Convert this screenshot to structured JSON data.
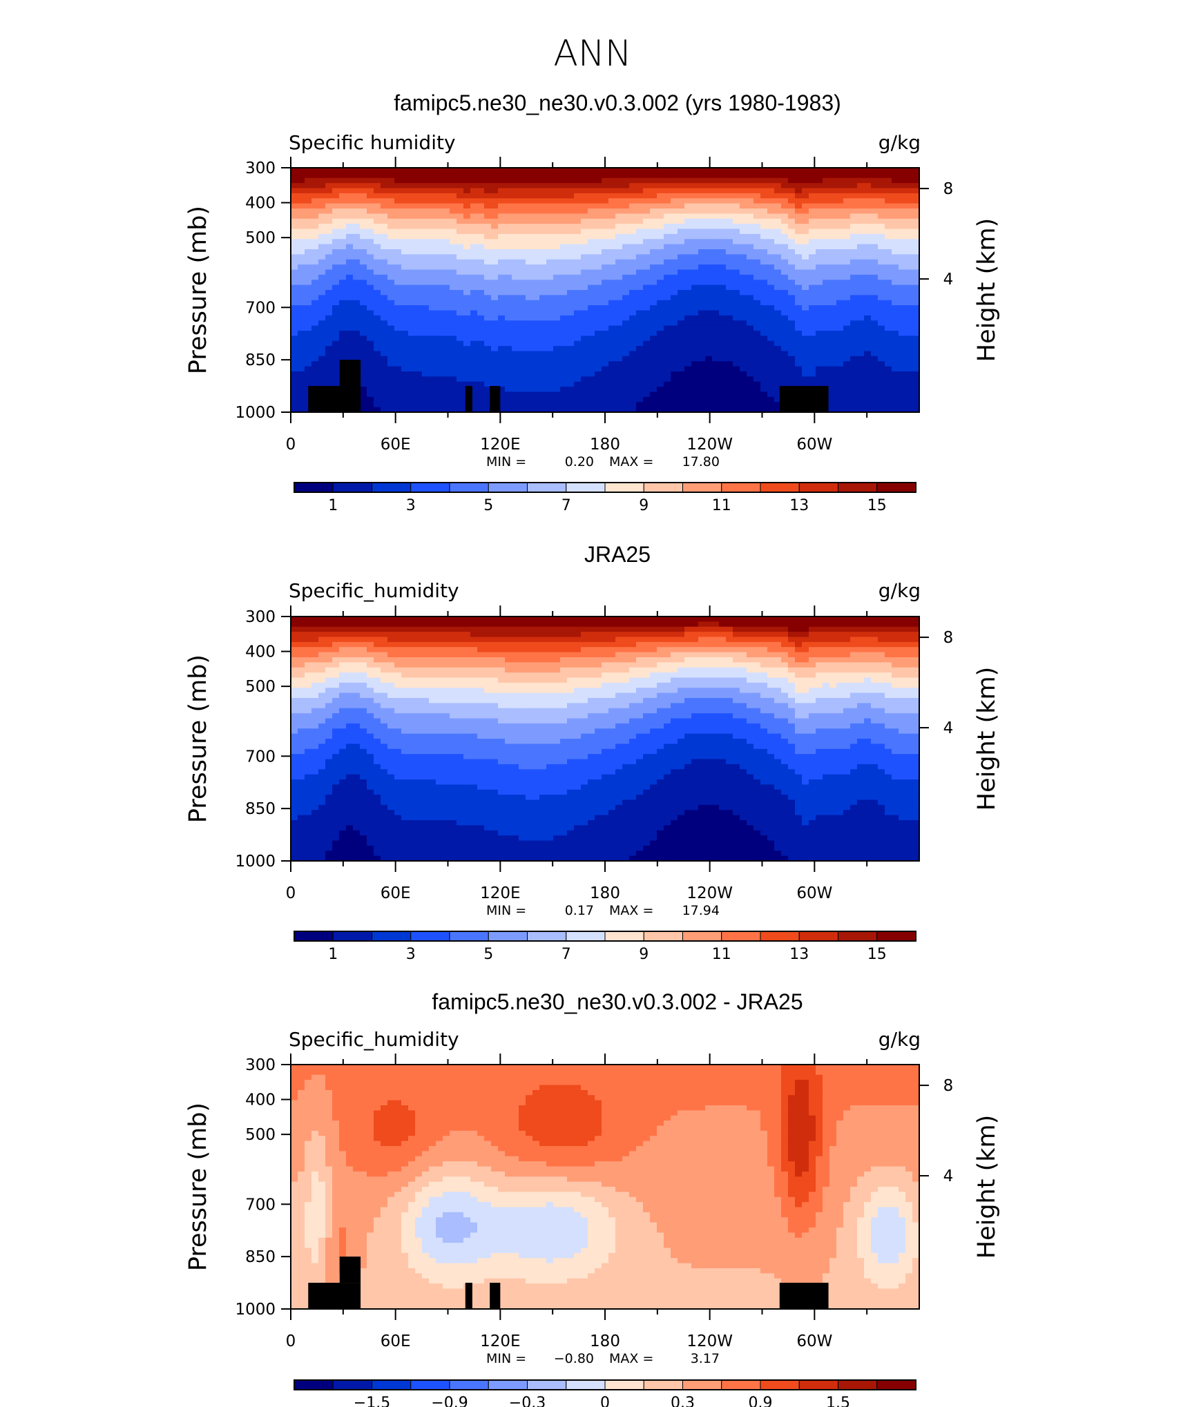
{
  "title": "ANN",
  "colors": {
    "levels_palette": [
      "#00007f",
      "#0019a8",
      "#0038d4",
      "#1f52ff",
      "#4a76ff",
      "#7d9bff",
      "#a9bdff",
      "#d5e0ff",
      "#ffe4cf",
      "#ffc6a9",
      "#ff9d77",
      "#ff7447",
      "#ef4b1c",
      "#cf2d0c",
      "#a81605",
      "#860000"
    ],
    "land_mask": "#000000"
  },
  "chart_data": [
    {
      "type": "heatmap",
      "title": "famipc5.ne30_ne30.v0.3.002 (yrs 1980-1983)",
      "variable": "Specific humidity",
      "units": "g/kg",
      "xlabel": "",
      "ylabel": "Pressure (mb)",
      "ylabel_right": "Height (km)",
      "x_ticks": [
        "0",
        "60E",
        "120E",
        "180",
        "120W",
        "60W"
      ],
      "y_ticks": [
        "300",
        "400",
        "500",
        "700",
        "850",
        "1000"
      ],
      "right_ticks": [
        "8",
        "4"
      ],
      "min_label": "MIN =",
      "min_value": "0.20",
      "max_label": "MAX =",
      "max_value": "17.80",
      "colorbar_labels": [
        "1",
        "3",
        "5",
        "7",
        "9",
        "11",
        "13",
        "15"
      ],
      "value_range": [
        0.2,
        17.8
      ]
    },
    {
      "type": "heatmap",
      "title": "JRA25",
      "variable": "Specific_humidity",
      "units": "g/kg",
      "xlabel": "",
      "ylabel": "Pressure (mb)",
      "ylabel_right": "Height (km)",
      "x_ticks": [
        "0",
        "60E",
        "120E",
        "180",
        "120W",
        "60W"
      ],
      "y_ticks": [
        "300",
        "400",
        "500",
        "700",
        "850",
        "1000"
      ],
      "right_ticks": [
        "8",
        "4"
      ],
      "min_label": "MIN =",
      "min_value": "0.17",
      "max_label": "MAX =",
      "max_value": "17.94",
      "colorbar_labels": [
        "1",
        "3",
        "5",
        "7",
        "9",
        "11",
        "13",
        "15"
      ],
      "value_range": [
        0.17,
        17.94
      ]
    },
    {
      "type": "heatmap",
      "title": "famipc5.ne30_ne30.v0.3.002 - JRA25",
      "variable": "Specific_humidity",
      "units": "g/kg",
      "xlabel": "",
      "ylabel": "Pressure (mb)",
      "ylabel_right": "Height (km)",
      "x_ticks": [
        "0",
        "60E",
        "120E",
        "180",
        "120W",
        "60W"
      ],
      "y_ticks": [
        "300",
        "400",
        "500",
        "700",
        "850",
        "1000"
      ],
      "right_ticks": [
        "8",
        "4"
      ],
      "min_label": "MIN =",
      "min_value": "−0.80",
      "max_label": "MAX =",
      "max_value": "3.17",
      "colorbar_labels": [
        "−1.5",
        "−0.9",
        "−0.3",
        "0",
        "0.3",
        "0.9",
        "1.5"
      ],
      "value_range": [
        -0.8,
        3.17
      ]
    }
  ]
}
